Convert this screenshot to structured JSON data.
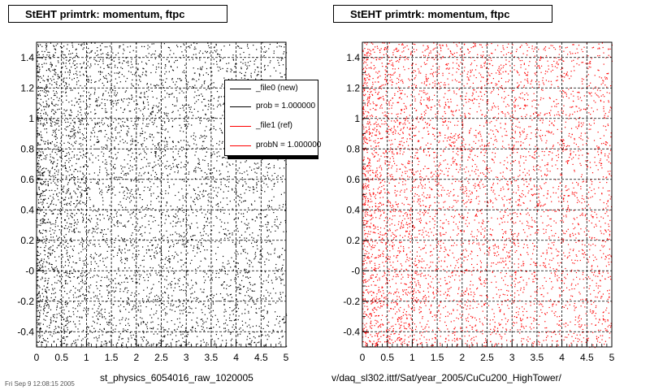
{
  "chart_data": [
    {
      "type": "scatter",
      "title": "StEHT primtrk: momentum, ftpc",
      "xlabel": "st_physics_6054016_raw_1020005",
      "ylabel": "",
      "xlim": [
        0,
        5
      ],
      "ylim": [
        -0.5,
        1.5
      ],
      "x_ticks": [
        "0",
        "0.5",
        "1",
        "1.5",
        "2",
        "2.5",
        "3",
        "3.5",
        "4",
        "4.5",
        "5"
      ],
      "y_ticks": [
        "-0.4",
        "-0.2",
        "-0",
        "0.2",
        "0.4",
        "0.6",
        "0.8",
        "1",
        "1.2",
        "1.4"
      ],
      "grid": true,
      "marker_color": "#000000",
      "legend_placement": "top-right",
      "legend": [
        {
          "label": "_file0 (new)",
          "color": "#000000"
        },
        {
          "label": "prob = 1.000000",
          "color": "#000000"
        },
        {
          "label": "_file1 (ref)",
          "color": "#ff0000"
        },
        {
          "label": "probN = 1.000000",
          "color": "#ff0000"
        }
      ]
    },
    {
      "type": "scatter",
      "title": "StEHT primtrk: momentum, ftpc",
      "xlabel": "v/daq_sl302.ittf/Sat/year_2005/CuCu200_HighTower/",
      "ylabel": "",
      "xlim": [
        0,
        5
      ],
      "ylim": [
        -0.5,
        1.5
      ],
      "x_ticks": [
        "0",
        "0.5",
        "1",
        "1.5",
        "2",
        "2.5",
        "3",
        "3.5",
        "4",
        "4.5",
        "5"
      ],
      "y_ticks": [
        "-0.4",
        "-0.2",
        "-0",
        "0.2",
        "0.4",
        "0.6",
        "0.8",
        "1",
        "1.2",
        "1.4"
      ],
      "grid": true,
      "marker_color": "#ff0000"
    }
  ],
  "page": {
    "fragment_text": "Fri Sep 9 12:08:15 2005"
  }
}
